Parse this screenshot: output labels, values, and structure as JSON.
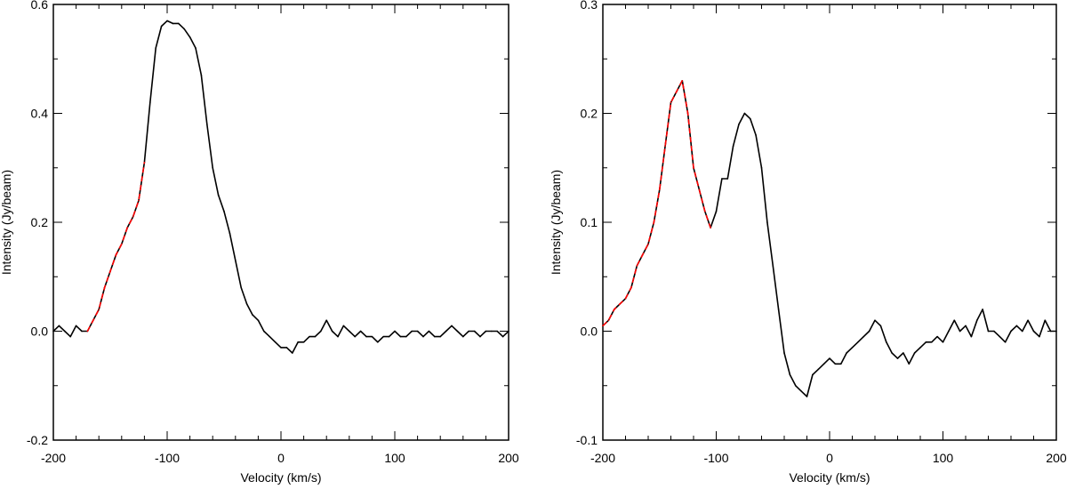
{
  "chart_data": [
    {
      "type": "line",
      "title": "",
      "xlabel": "Velocity (km/s)",
      "ylabel": "Intensity (Jy/beam)",
      "xlim": [
        -200,
        200
      ],
      "ylim": [
        -0.2,
        0.6
      ],
      "xticks": [
        -200,
        -100,
        0,
        100,
        200
      ],
      "xtick_labels": [
        "-200",
        "-100",
        "0",
        "100",
        "200"
      ],
      "yticks": [
        -0.2,
        0.0,
        0.2,
        0.4,
        0.6
      ],
      "ytick_labels": [
        "-0.2",
        "0.0",
        "0.2",
        "0.4",
        "0.6"
      ],
      "grid": false,
      "series": [
        {
          "style": "solid",
          "color": "#000000",
          "x": [
            -200,
            -195,
            -190,
            -185,
            -180,
            -175,
            -170,
            -165,
            -160,
            -155,
            -150,
            -145,
            -140,
            -135,
            -130,
            -125,
            -120,
            -115,
            -110,
            -105,
            -100,
            -95,
            -90,
            -85,
            -80,
            -75,
            -70,
            -65,
            -60,
            -55,
            -50,
            -45,
            -40,
            -35,
            -30,
            -25,
            -20,
            -15,
            -10,
            -5,
            0,
            5,
            10,
            15,
            20,
            25,
            30,
            35,
            40,
            45,
            50,
            55,
            60,
            65,
            70,
            75,
            80,
            85,
            90,
            95,
            100,
            105,
            110,
            115,
            120,
            125,
            130,
            135,
            140,
            145,
            150,
            155,
            160,
            165,
            170,
            175,
            180,
            185,
            190,
            195,
            200
          ],
          "y": [
            0.0,
            0.01,
            0.0,
            -0.01,
            0.01,
            0.0,
            0.0,
            0.02,
            0.04,
            0.08,
            0.11,
            0.14,
            0.16,
            0.19,
            0.21,
            0.24,
            0.31,
            0.42,
            0.52,
            0.56,
            0.57,
            0.565,
            0.565,
            0.555,
            0.54,
            0.52,
            0.47,
            0.38,
            0.3,
            0.25,
            0.22,
            0.18,
            0.13,
            0.08,
            0.05,
            0.03,
            0.02,
            0.0,
            -0.01,
            -0.02,
            -0.03,
            -0.03,
            -0.04,
            -0.02,
            -0.02,
            -0.01,
            -0.01,
            0.0,
            0.02,
            0.0,
            -0.01,
            0.01,
            0.0,
            -0.01,
            0.0,
            -0.01,
            -0.01,
            -0.02,
            -0.01,
            -0.01,
            0.0,
            -0.01,
            -0.01,
            0.0,
            0.0,
            -0.01,
            0.0,
            -0.01,
            -0.01,
            0.0,
            0.01,
            0.0,
            -0.01,
            0.0,
            0.0,
            -0.01,
            0.0,
            0.0,
            0.0,
            -0.01,
            0.0
          ]
        },
        {
          "style": "dashed",
          "color": "#ff0000",
          "x": [
            -170,
            -165,
            -160,
            -155,
            -150,
            -145,
            -140,
            -135,
            -130,
            -125,
            -120
          ],
          "y": [
            0.0,
            0.02,
            0.04,
            0.08,
            0.11,
            0.14,
            0.16,
            0.19,
            0.21,
            0.24,
            0.31
          ]
        }
      ]
    },
    {
      "type": "line",
      "title": "",
      "xlabel": "Velocity (km/s)",
      "ylabel": "Intensity (Jy/beam)",
      "xlim": [
        -200,
        200
      ],
      "ylim": [
        -0.1,
        0.3
      ],
      "xticks": [
        -200,
        -100,
        0,
        100,
        200
      ],
      "xtick_labels": [
        "-200",
        "-100",
        "0",
        "100",
        "200"
      ],
      "yticks": [
        -0.1,
        0.0,
        0.1,
        0.2,
        0.3
      ],
      "ytick_labels": [
        "-0.1",
        "0.0",
        "0.1",
        "0.2",
        "0.3"
      ],
      "grid": false,
      "series": [
        {
          "style": "solid",
          "color": "#000000",
          "x": [
            -200,
            -195,
            -190,
            -185,
            -180,
            -175,
            -170,
            -165,
            -160,
            -155,
            -150,
            -145,
            -140,
            -135,
            -130,
            -125,
            -120,
            -115,
            -110,
            -105,
            -100,
            -95,
            -90,
            -85,
            -80,
            -75,
            -70,
            -65,
            -60,
            -55,
            -50,
            -45,
            -40,
            -35,
            -30,
            -25,
            -20,
            -15,
            -10,
            -5,
            0,
            5,
            10,
            15,
            20,
            25,
            30,
            35,
            40,
            45,
            50,
            55,
            60,
            65,
            70,
            75,
            80,
            85,
            90,
            95,
            100,
            105,
            110,
            115,
            120,
            125,
            130,
            135,
            140,
            145,
            150,
            155,
            160,
            165,
            170,
            175,
            180,
            185,
            190,
            195,
            200
          ],
          "y": [
            0.005,
            0.01,
            0.02,
            0.025,
            0.03,
            0.04,
            0.06,
            0.07,
            0.08,
            0.1,
            0.13,
            0.17,
            0.21,
            0.22,
            0.23,
            0.2,
            0.15,
            0.13,
            0.11,
            0.095,
            0.11,
            0.14,
            0.14,
            0.17,
            0.19,
            0.2,
            0.195,
            0.18,
            0.15,
            0.1,
            0.06,
            0.02,
            -0.02,
            -0.04,
            -0.05,
            -0.055,
            -0.06,
            -0.04,
            -0.035,
            -0.03,
            -0.025,
            -0.03,
            -0.03,
            -0.02,
            -0.015,
            -0.01,
            -0.005,
            0.0,
            0.01,
            0.005,
            -0.01,
            -0.02,
            -0.025,
            -0.02,
            -0.03,
            -0.02,
            -0.015,
            -0.01,
            -0.01,
            -0.005,
            -0.01,
            0.0,
            0.01,
            0.0,
            0.005,
            -0.005,
            0.01,
            0.02,
            0.0,
            0.0,
            -0.005,
            -0.01,
            0.0,
            0.005,
            0.0,
            0.01,
            0.0,
            -0.005,
            0.01,
            0.0,
            0.0
          ]
        },
        {
          "style": "dashed",
          "color": "#ff0000",
          "x": [
            -200,
            -195,
            -190,
            -185,
            -180,
            -175,
            -170,
            -165,
            -160,
            -155,
            -150,
            -145,
            -140,
            -135,
            -130,
            -125,
            -120,
            -115,
            -110,
            -105
          ],
          "y": [
            0.005,
            0.01,
            0.02,
            0.025,
            0.03,
            0.04,
            0.06,
            0.07,
            0.08,
            0.1,
            0.13,
            0.17,
            0.21,
            0.22,
            0.23,
            0.2,
            0.15,
            0.13,
            0.11,
            0.095
          ]
        }
      ]
    }
  ]
}
